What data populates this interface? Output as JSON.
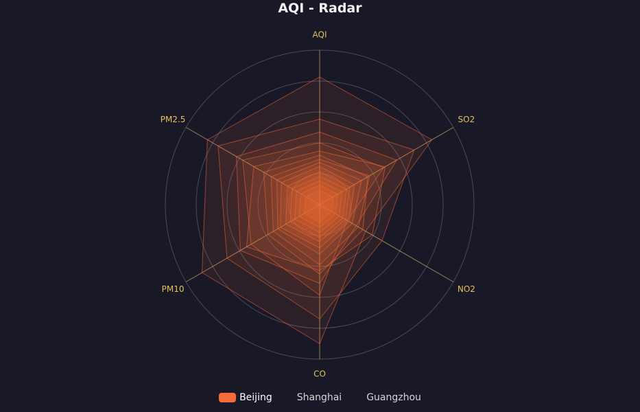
{
  "chart_data": {
    "type": "radar",
    "title": "AQI - Radar",
    "indicators": [
      "AQI",
      "SO2",
      "NO2",
      "CO",
      "PM10",
      "PM2.5"
    ],
    "indicator_max": [
      300,
      300,
      300,
      300,
      300,
      300
    ],
    "split_number": 5,
    "series": [
      {
        "name": "Beijing",
        "active": true,
        "color": "#f46a39",
        "values": [
          [
            248,
            252,
            103,
            270,
            264,
            252
          ],
          [
            166,
            212,
            140,
            222,
            208,
            228
          ],
          [
            141,
            173,
            82,
            153,
            178,
            187
          ],
          [
            120,
            144,
            62,
            176,
            154,
            173
          ],
          [
            104,
            147,
            118,
            128,
            164,
            148
          ],
          [
            96,
            108,
            97,
            135,
            116,
            126
          ],
          [
            88,
            112,
            87,
            117,
            104,
            109
          ],
          [
            82,
            94,
            73,
            96,
            94,
            96
          ],
          [
            74,
            78,
            66,
            84,
            88,
            86
          ],
          [
            64,
            68,
            58,
            72,
            76,
            72
          ],
          [
            55,
            60,
            52,
            64,
            66,
            62
          ],
          [
            46,
            50,
            44,
            54,
            56,
            52
          ],
          [
            38,
            40,
            36,
            44,
            46,
            42
          ],
          [
            28,
            30,
            26,
            34,
            34,
            30
          ]
        ]
      },
      {
        "name": "Shanghai",
        "active": false,
        "color": "#b8b8c8",
        "values": []
      },
      {
        "name": "Guangzhou",
        "active": false,
        "color": "#b8b8c8",
        "values": []
      }
    ]
  },
  "colors": {
    "axis_label": "#e8c15a",
    "axis_line": "#cfa364",
    "grid": "#4a4a5a",
    "area": "#f46a39",
    "background": "#181827"
  }
}
